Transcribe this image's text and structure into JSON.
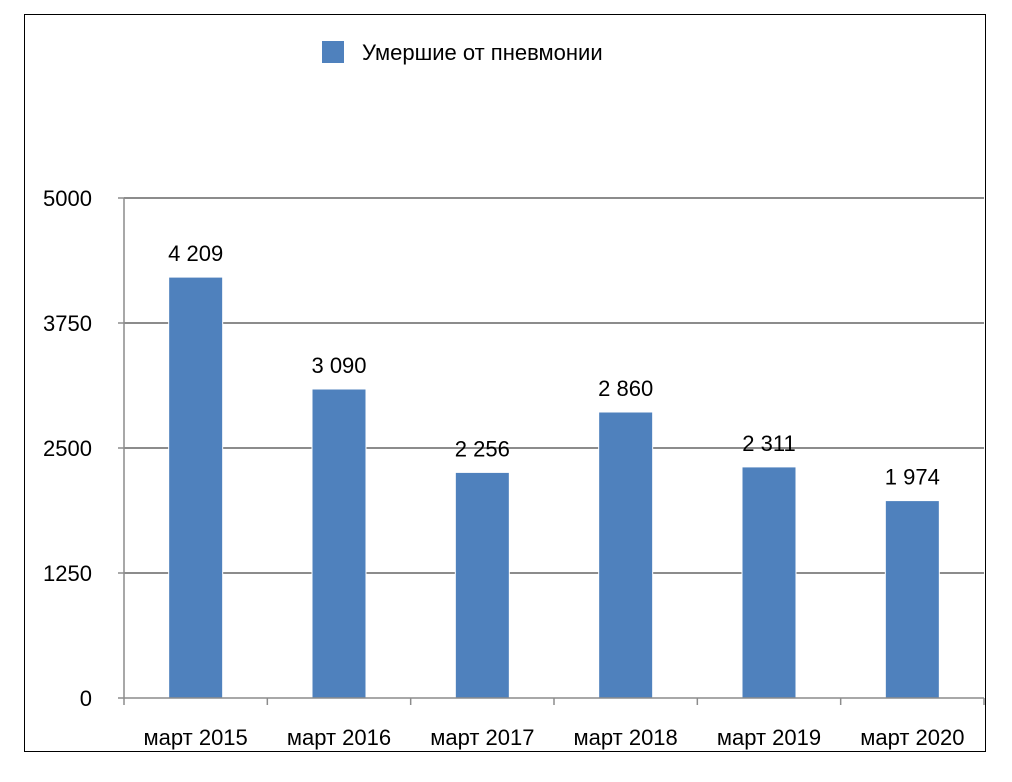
{
  "chart_data": {
    "type": "bar",
    "title": "",
    "xlabel": "",
    "ylabel": "",
    "categories": [
      "март 2015",
      "март 2016",
      "март 2017",
      "март 2018",
      "март 2019",
      "март 2020"
    ],
    "series": [
      {
        "name": "Умершие от пневмонии",
        "values": [
          4209,
          3090,
          2256,
          2860,
          2311,
          1974
        ],
        "labels": [
          "4 209",
          "3 090",
          "2 256",
          "2 860",
          "2 311",
          "1 974"
        ],
        "color": "#4f81bd"
      }
    ],
    "ylim": [
      0,
      5000
    ],
    "yticks": [
      0,
      1250,
      2500,
      3750,
      5000
    ],
    "grid": true,
    "legend": "top-center"
  }
}
